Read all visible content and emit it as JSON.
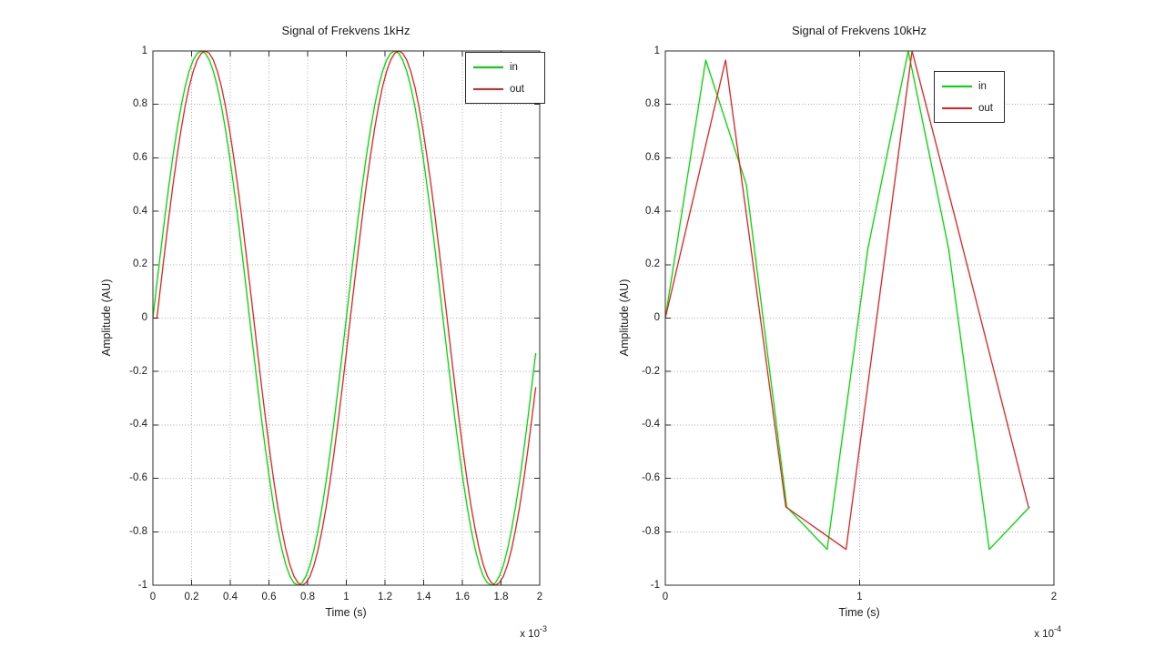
{
  "figure": {
    "background": "#ffffff",
    "axis_color": "#2b2b2b",
    "grid_color": "#aaaaaa",
    "text_color": "#1a1a1a"
  },
  "chart_data": [
    {
      "type": "line",
      "title": "Signal of Frekvens 1kHz",
      "xlabel": "Time (s)",
      "ylabel": "Amplitude (AU)",
      "x_scale": {
        "base": "x 10",
        "exp": "-3"
      },
      "xlim": [
        0,
        0.002
      ],
      "ylim": [
        -1,
        1
      ],
      "grid": true,
      "legend_position": "upper right",
      "xticks": {
        "values": [
          0,
          0.0002,
          0.0004,
          0.0006,
          0.0008,
          0.001,
          0.0012,
          0.0014,
          0.0016,
          0.0018,
          0.002
        ],
        "labels": [
          "0",
          "0.2",
          "0.4",
          "0.6",
          "0.8",
          "1",
          "1.2",
          "1.4",
          "1.6",
          "1.8",
          "2"
        ]
      },
      "yticks": {
        "values": [
          1,
          0.8,
          0.6,
          0.4,
          0.2,
          0,
          -0.2,
          -0.4,
          -0.6,
          -0.8,
          -1
        ],
        "labels": [
          "1",
          "0.8",
          "0.6",
          "0.4",
          "0.2",
          "0",
          "-0.2",
          "-0.4",
          "-0.6",
          "-0.8",
          "-1"
        ]
      },
      "series": [
        {
          "name": "in",
          "color": "#00dd00",
          "signal": "sine 1 kHz sampled at 48 kHz, 2 periods",
          "sample_period_s": 2.08333e-05,
          "num_samples": 96,
          "phase_offset_samples": 0,
          "y_period": [
            0,
            0.131,
            0.259,
            0.383,
            0.5,
            0.609,
            0.707,
            0.793,
            0.866,
            0.924,
            0.966,
            0.991,
            1,
            0.991,
            0.966,
            0.924,
            0.866,
            0.793,
            0.707,
            0.609,
            0.5,
            0.383,
            0.259,
            0.131,
            0,
            -0.131,
            -0.259,
            -0.383,
            -0.5,
            -0.609,
            -0.707,
            -0.793,
            -0.866,
            -0.924,
            -0.966,
            -0.991,
            -1,
            -0.991,
            -0.966,
            -0.924,
            -0.866,
            -0.793,
            -0.707,
            -0.609,
            -0.5,
            -0.383,
            -0.259,
            -0.131
          ]
        },
        {
          "name": "out",
          "color": "#e82121",
          "signal": "sine 1 kHz, output delayed ~1 sample",
          "sample_period_s": 2.08333e-05,
          "num_samples": 96,
          "phase_offset_samples": -1,
          "y_period": [
            0,
            0.131,
            0.259,
            0.383,
            0.5,
            0.609,
            0.707,
            0.793,
            0.866,
            0.924,
            0.966,
            0.991,
            1,
            0.991,
            0.966,
            0.924,
            0.866,
            0.793,
            0.707,
            0.609,
            0.5,
            0.383,
            0.259,
            0.131,
            0,
            -0.131,
            -0.259,
            -0.383,
            -0.5,
            -0.609,
            -0.707,
            -0.793,
            -0.866,
            -0.924,
            -0.966,
            -0.991,
            -1,
            -0.991,
            -0.966,
            -0.924,
            -0.866,
            -0.793,
            -0.707,
            -0.609,
            -0.5,
            -0.383,
            -0.259,
            -0.131
          ]
        }
      ]
    },
    {
      "type": "line",
      "title": "Signal of Frekvens 10kHz",
      "xlabel": "Time (s)",
      "ylabel": "Amplitude (AU)",
      "x_scale": {
        "base": "x 10",
        "exp": "-4"
      },
      "xlim": [
        0,
        0.0002
      ],
      "ylim": [
        -1,
        1
      ],
      "grid": true,
      "legend_position": "upper right",
      "xticks": {
        "values": [
          0,
          0.0001,
          0.0002
        ],
        "labels": [
          "0",
          "1",
          "2"
        ]
      },
      "yticks": {
        "values": [
          1,
          0.8,
          0.6,
          0.4,
          0.2,
          0,
          -0.2,
          -0.4,
          -0.6,
          -0.8,
          -1
        ],
        "labels": [
          "1",
          "0.8",
          "0.6",
          "0.4",
          "0.2",
          "0",
          "-0.2",
          "-0.4",
          "-0.6",
          "-0.8",
          "-1"
        ]
      },
      "series": [
        {
          "name": "in",
          "color": "#00dd00",
          "signal": "sine 10 kHz sampled at 48 kHz",
          "x": [
            0,
            2.08e-05,
            4.17e-05,
            6.25e-05,
            8.33e-05,
            0.0001042,
            0.000125,
            0.0001458,
            0.0001667,
            0.0001875
          ],
          "y": [
            0,
            0.966,
            0.5,
            -0.707,
            -0.866,
            0.259,
            1,
            0.259,
            -0.866,
            -0.707
          ]
        },
        {
          "name": "out",
          "color": "#e82121",
          "signal": "10 kHz output, delayed",
          "x": [
            0,
            3.1e-05,
            6.2e-05,
            9.3e-05,
            0.000127,
            0.00015,
            0.000187
          ],
          "y": [
            0,
            0.966,
            -0.707,
            -0.866,
            1,
            0.35,
            -0.71
          ]
        }
      ]
    }
  ]
}
